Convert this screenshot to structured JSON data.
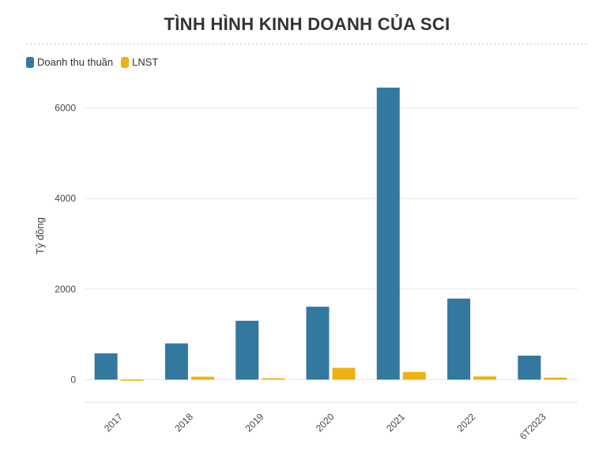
{
  "chart_data": {
    "type": "bar",
    "title": "TÌNH HÌNH KINH DOANH CỦA SCI",
    "ylabel": "Tỷ đồng",
    "xlabel": "",
    "categories": [
      "2017",
      "2018",
      "2019",
      "2020",
      "2021",
      "2022",
      "6T2023"
    ],
    "series": [
      {
        "name": "Doanh thu thuần",
        "color": "#33789f",
        "values": [
          580,
          800,
          1300,
          1610,
          6450,
          1790,
          530
        ]
      },
      {
        "name": "LNST",
        "color": "#eeb10f",
        "values": [
          -15,
          65,
          30,
          260,
          170,
          70,
          45
        ]
      }
    ],
    "yticks": [
      0,
      2000,
      4000,
      6000
    ],
    "ylim": [
      -500,
      6500
    ],
    "grid": true,
    "legend": "top-left"
  }
}
